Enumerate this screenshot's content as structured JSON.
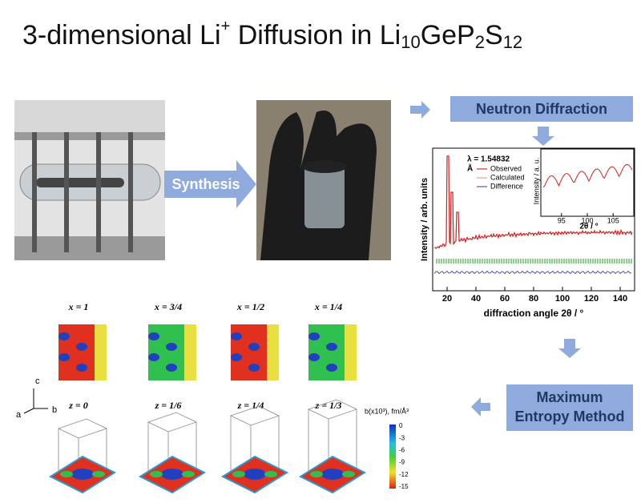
{
  "title": {
    "text": "3-dimensional Li",
    "sup": "+",
    "middle": " Diffusion in Li",
    "sub1": "10",
    "part2": "GeP",
    "sub2": "2",
    "part3": "S",
    "sub3": "12"
  },
  "steps": {
    "synthesis": "Synthesis",
    "neutron": "Neutron Diffraction",
    "mem_line1": "Maximum",
    "mem_line2": "Entropy Method"
  },
  "diffraction": {
    "y_label": "Intensity / arb. units",
    "x_label": "diffraction angle 2θ / °",
    "xticks": [
      20,
      40,
      60,
      80,
      100,
      120,
      140
    ],
    "legend": {
      "wavelength": "λ = 1.54832",
      "unit": "Å",
      "observed": "Observed",
      "calculated": "Calculated",
      "difference": "Difference"
    },
    "inset": {
      "y_label": "Intensity / a. u.",
      "x_label": "2θ / °",
      "xticks": [
        95,
        100,
        105
      ]
    }
  },
  "mem": {
    "x_labels": [
      "x = 1",
      "x = 3/4",
      "x = 1/2",
      "x = 1/4"
    ],
    "z_labels": [
      "z = 0",
      "z = 1/6",
      "z = 1/4",
      "z = 1/3"
    ],
    "axes": {
      "c": "c",
      "a": "a",
      "b": "b"
    },
    "colorbar": {
      "title": "b(x10³), fm/Å³",
      "ticks": [
        0,
        -3,
        -6,
        -9,
        -12,
        -15
      ]
    }
  }
}
